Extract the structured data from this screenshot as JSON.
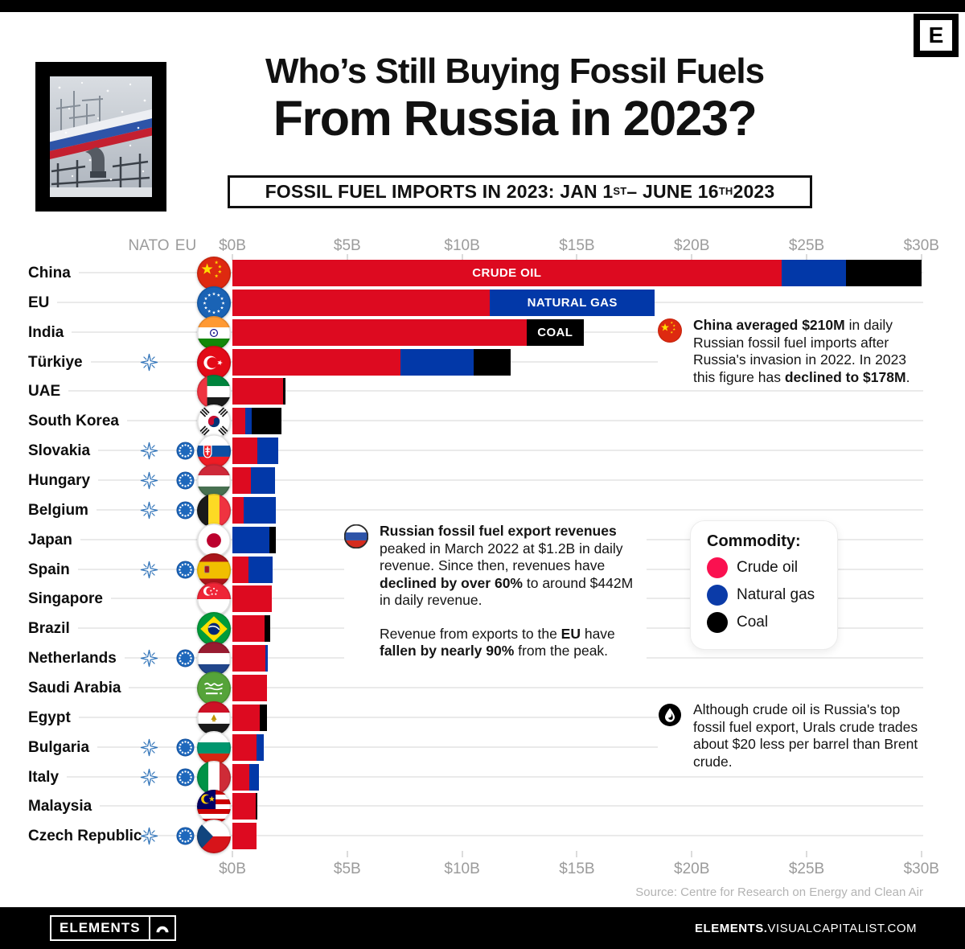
{
  "header": {
    "e_letter": "E",
    "title_line1": "Who’s Still Buying Fossil Fuels",
    "title_line2": "From Russia in 2023?",
    "subtitle_parts": [
      "FOSSIL FUEL IMPORTS IN 2023: JAN 1",
      "ST",
      " – JUNE 16",
      "TH",
      " 2023"
    ]
  },
  "axis": {
    "nato_header": "NATO",
    "eu_header": "EU",
    "ticks": [
      "$0B",
      "$5B",
      "$10B",
      "$15B",
      "$20B",
      "$25B",
      "$30B"
    ],
    "max_billion": 30
  },
  "chart_data": {
    "type": "bar",
    "stacked": true,
    "orientation": "horizontal",
    "unit": "billion USD",
    "title": "Fossil fuel imports from Russia, Jan 1 - June 16 2023",
    "series_names": [
      "Crude oil",
      "Natural gas",
      "Coal"
    ],
    "xlim": [
      0,
      30
    ],
    "bar_labels": {
      "crude": "CRUDE OIL",
      "gas": "NATURAL GAS",
      "coal": "COAL"
    },
    "rows": [
      {
        "country": "China",
        "flag": "cn",
        "nato": false,
        "eu": false,
        "crude": 23.9,
        "gas": 2.8,
        "coal": 3.3,
        "segment_label": "crude"
      },
      {
        "country": "EU",
        "flag": "eu",
        "nato": false,
        "eu": false,
        "crude": 11.2,
        "gas": 7.2,
        "coal": 0,
        "segment_label": "gas"
      },
      {
        "country": "India",
        "flag": "in",
        "nato": false,
        "eu": false,
        "crude": 12.8,
        "gas": 0,
        "coal": 2.5,
        "segment_label": "coal"
      },
      {
        "country": "Türkiye",
        "flag": "tr",
        "nato": true,
        "eu": false,
        "crude": 7.3,
        "gas": 3.2,
        "coal": 1.6
      },
      {
        "country": "UAE",
        "flag": "ae",
        "nato": false,
        "eu": false,
        "crude": 2.2,
        "gas": 0,
        "coal": 0.1
      },
      {
        "country": "South Korea",
        "flag": "kr",
        "nato": false,
        "eu": false,
        "crude": 0.55,
        "gas": 0.3,
        "coal": 1.3
      },
      {
        "country": "Slovakia",
        "flag": "sk",
        "nato": true,
        "eu": true,
        "crude": 1.1,
        "gas": 0.9,
        "coal": 0
      },
      {
        "country": "Hungary",
        "flag": "hu",
        "nato": true,
        "eu": true,
        "crude": 0.8,
        "gas": 1.05,
        "coal": 0
      },
      {
        "country": "Belgium",
        "flag": "be",
        "nato": true,
        "eu": true,
        "crude": 0.5,
        "gas": 1.4,
        "coal": 0
      },
      {
        "country": "Japan",
        "flag": "jp",
        "nato": false,
        "eu": false,
        "crude": 0,
        "gas": 1.6,
        "coal": 0.3
      },
      {
        "country": "Spain",
        "flag": "es",
        "nato": true,
        "eu": true,
        "crude": 0.7,
        "gas": 1.05,
        "coal": 0
      },
      {
        "country": "Singapore",
        "flag": "sg",
        "nato": false,
        "eu": false,
        "crude": 1.7,
        "gas": 0,
        "coal": 0
      },
      {
        "country": "Brazil",
        "flag": "br",
        "nato": false,
        "eu": false,
        "crude": 1.4,
        "gas": 0,
        "coal": 0.25
      },
      {
        "country": "Netherlands",
        "flag": "nl",
        "nato": true,
        "eu": true,
        "crude": 1.45,
        "gas": 0.1,
        "coal": 0
      },
      {
        "country": "Saudi Arabia",
        "flag": "sa",
        "nato": false,
        "eu": false,
        "crude": 1.5,
        "gas": 0,
        "coal": 0
      },
      {
        "country": "Egypt",
        "flag": "eg",
        "nato": false,
        "eu": false,
        "crude": 1.2,
        "gas": 0,
        "coal": 0.3
      },
      {
        "country": "Bulgaria",
        "flag": "bg",
        "nato": true,
        "eu": true,
        "crude": 1.05,
        "gas": 0.3,
        "coal": 0
      },
      {
        "country": "Italy",
        "flag": "it",
        "nato": true,
        "eu": true,
        "crude": 0.75,
        "gas": 0.4,
        "coal": 0
      },
      {
        "country": "Malaysia",
        "flag": "my",
        "nato": false,
        "eu": false,
        "crude": 1.0,
        "gas": 0,
        "coal": 0.1
      },
      {
        "country": "Czech Republic",
        "flag": "cz",
        "nato": true,
        "eu": true,
        "crude": 1.05,
        "gas": 0,
        "coal": 0
      }
    ]
  },
  "legend": {
    "title": "Commodity:",
    "items": [
      {
        "label": "Crude oil",
        "color": "#FA1150"
      },
      {
        "label": "Natural gas",
        "color": "#0B3BA8"
      },
      {
        "label": "Coal",
        "color": "#000000"
      }
    ]
  },
  "notes": [
    {
      "id": "china-note",
      "icon": "cn",
      "paragraphs": [
        [
          {
            "t": "China averaged $210M",
            "b": true
          },
          {
            "t": " in daily Russian fossil fuel imports after Russia's invasion in 2022. In 2023 this figure has ",
            "b": false
          },
          {
            "t": "declined to $178M",
            "b": true
          },
          {
            "t": ".",
            "b": false
          }
        ]
      ]
    },
    {
      "id": "russia-note",
      "icon": "ru",
      "paragraphs": [
        [
          {
            "t": "Russian fossil fuel export revenues",
            "b": true
          },
          {
            "t": " peaked in March 2022 at $1.2B in daily revenue. Since then, revenues have ",
            "b": false
          },
          {
            "t": "declined by over 60%",
            "b": true
          },
          {
            "t": " to around $442M in daily revenue.",
            "b": false
          }
        ],
        [
          {
            "t": "Revenue from exports to the ",
            "b": false
          },
          {
            "t": "EU",
            "b": true
          },
          {
            "t": " have ",
            "b": false
          },
          {
            "t": "fallen by nearly 90%",
            "b": true
          },
          {
            "t": " from the peak.",
            "b": false
          }
        ]
      ]
    },
    {
      "id": "oil-note",
      "icon": "oil",
      "paragraphs": [
        [
          {
            "t": "Although crude oil is Russia's top fossil fuel export, Urals crude trades about $20 less per barrel than Brent crude.",
            "b": false
          }
        ]
      ]
    }
  ],
  "source": "Source: Centre for Research on Energy and Clean Air",
  "footer": {
    "brand": "ELEMENTS",
    "site_bold": "ELEMENTS.",
    "site_rest": "VISUALCAPITALIST.COM"
  },
  "colors": {
    "crude_bar": "#DD0A20",
    "gas_bar": "#0238A8",
    "coal_bar": "#000000",
    "row_line": "#EAEAEA",
    "axis_text": "#9B9B9B",
    "nato_blue": "#2E72B8",
    "eu_blue": "#1E68BC"
  }
}
